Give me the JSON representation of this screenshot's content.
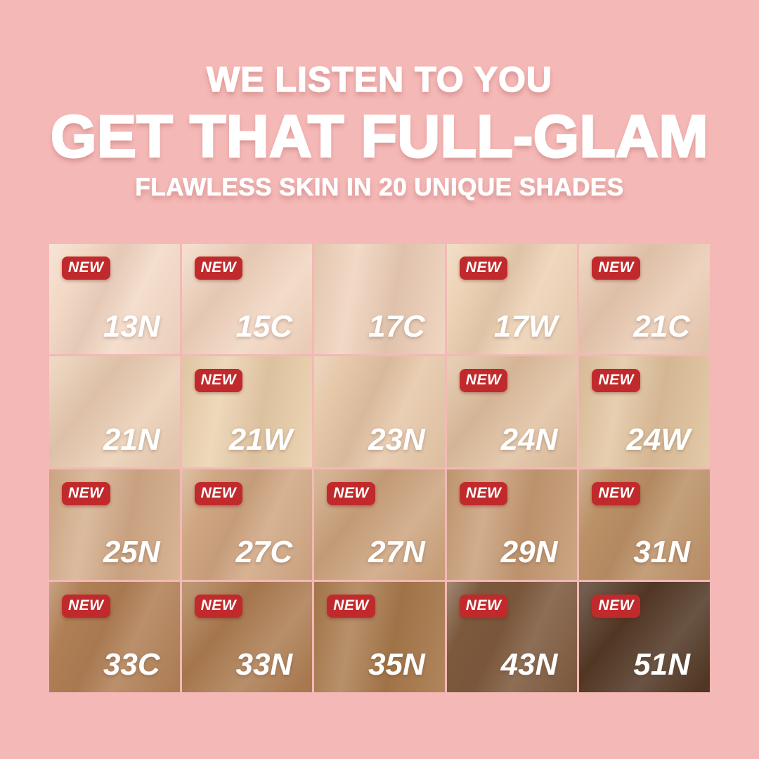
{
  "canvas": {
    "background": "#F4B8B6"
  },
  "header": {
    "tagline": "WE LISTEN TO YOU",
    "title": "GET THAT FULL-GLAM",
    "subtitle": "FLAWLESS SKIN IN 20 UNIQUE SHADES",
    "text_color": "#FFFFFF"
  },
  "badge": {
    "label": "NEW",
    "background": "#C12A2C",
    "text_color": "#FFFFFF"
  },
  "shade_grid": {
    "columns": 5,
    "rows": 4,
    "total_shades": 20,
    "cells": [
      {
        "shade": "13N",
        "is_new": true,
        "color": "#F3D9C6"
      },
      {
        "shade": "15C",
        "is_new": true,
        "color": "#F1D5C0"
      },
      {
        "shade": "17C",
        "is_new": false,
        "color": "#EED1BA"
      },
      {
        "shade": "17W",
        "is_new": true,
        "color": "#EDD2B5"
      },
      {
        "shade": "21C",
        "is_new": true,
        "color": "#EACBB3"
      },
      {
        "shade": "21N",
        "is_new": false,
        "color": "#E9CDB3"
      },
      {
        "shade": "21W",
        "is_new": true,
        "color": "#EAD0AC"
      },
      {
        "shade": "23N",
        "is_new": false,
        "color": "#E6C7A8"
      },
      {
        "shade": "24N",
        "is_new": true,
        "color": "#E0C0A0"
      },
      {
        "shade": "24W",
        "is_new": true,
        "color": "#E1C49F"
      },
      {
        "shade": "25N",
        "is_new": true,
        "color": "#D3AC89"
      },
      {
        "shade": "27C",
        "is_new": true,
        "color": "#D0A783"
      },
      {
        "shade": "27N",
        "is_new": true,
        "color": "#CCA37D"
      },
      {
        "shade": "29N",
        "is_new": true,
        "color": "#C69B74"
      },
      {
        "shade": "31N",
        "is_new": true,
        "color": "#BB9167"
      },
      {
        "shade": "33C",
        "is_new": true,
        "color": "#B07F55"
      },
      {
        "shade": "33N",
        "is_new": true,
        "color": "#AB7B50"
      },
      {
        "shade": "35N",
        "is_new": true,
        "color": "#A7784A"
      },
      {
        "shade": "43N",
        "is_new": true,
        "color": "#7C593D"
      },
      {
        "shade": "51N",
        "is_new": true,
        "color": "#4F3522"
      }
    ]
  }
}
